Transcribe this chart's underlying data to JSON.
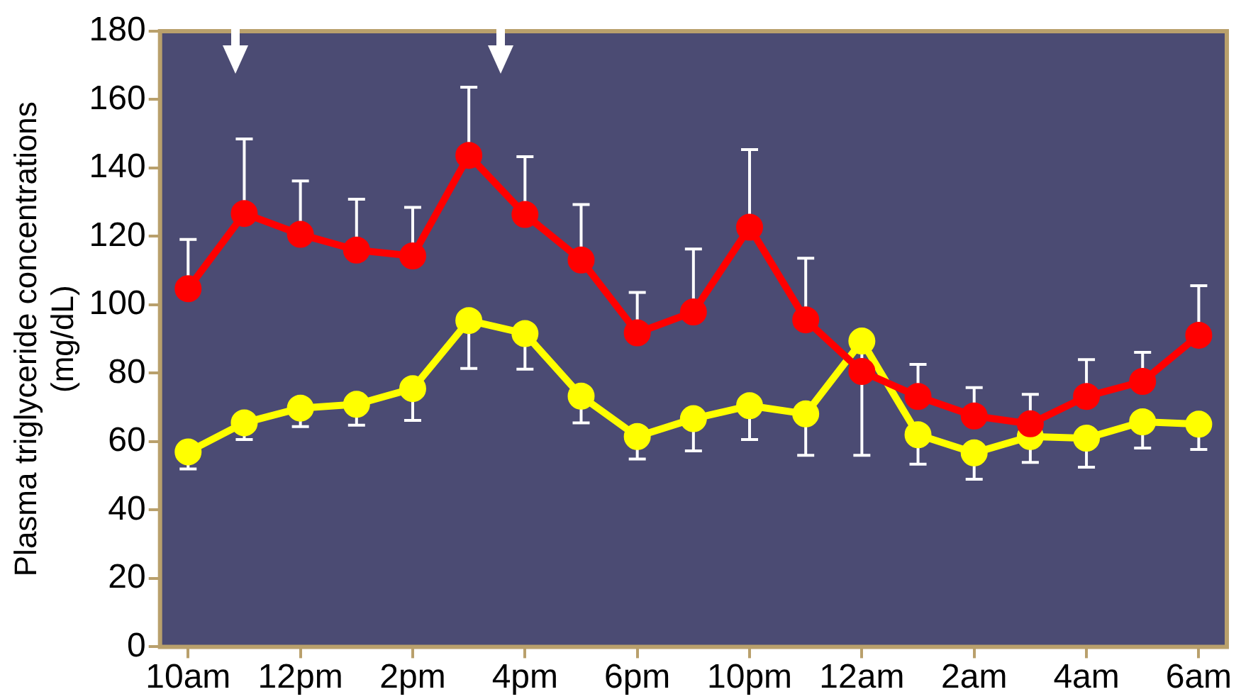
{
  "chart_data": {
    "type": "line",
    "ylabel": "Plasma triglyceride concentrations\n(mg/dL)",
    "categories": [
      "10am",
      null,
      "12pm",
      null,
      "2pm",
      null,
      "4pm",
      null,
      "6pm",
      null,
      "10pm",
      null,
      "12am",
      null,
      "2am",
      null,
      "4am",
      null,
      "6am"
    ],
    "series": [
      {
        "color": "#ff0000",
        "values": [
          104.7,
          126.7,
          120.6,
          116,
          114.3,
          143.7,
          126.4,
          113.1,
          91.8,
          97.9,
          122.7,
          95.6,
          80.5,
          73.2,
          67.5,
          65.2,
          73.2,
          77.6,
          91.1
        ],
        "errors": [
          [
            104.7,
            119.1
          ],
          [
            126.7,
            148.5
          ],
          [
            120.6,
            136.2
          ],
          [
            116,
            130.9
          ],
          [
            114.3,
            128.5
          ],
          [
            143.7,
            163.6
          ],
          [
            126.4,
            143.3
          ],
          [
            113.1,
            129.3
          ],
          [
            91.8,
            103.6
          ],
          [
            97.9,
            116.3
          ],
          [
            122.7,
            145.4
          ],
          [
            95.6,
            113.6
          ],
          null,
          [
            73.2,
            82.6
          ],
          [
            67.5,
            75.8
          ],
          [
            65.2,
            73.8
          ],
          [
            73.2,
            84
          ],
          [
            77.6,
            86.1
          ],
          [
            91.1,
            105.6
          ]
        ]
      },
      {
        "color": "#ffff00",
        "values": [
          57,
          65.5,
          69.8,
          70.9,
          75.5,
          95.4,
          91.6,
          73.3,
          61.5,
          66.7,
          70.5,
          68.1,
          89.4,
          62,
          56.7,
          61.5,
          61,
          65.8,
          65.1
        ],
        "errors": [
          [
            52,
            57
          ],
          [
            60.6,
            65.5
          ],
          [
            64.4,
            69.8
          ],
          [
            64.8,
            70.9
          ],
          [
            66.2,
            75.5
          ],
          [
            81.4,
            95.4
          ],
          [
            81.2,
            91.6
          ],
          [
            65.5,
            73.3
          ],
          [
            54.9,
            61.5
          ],
          [
            57.3,
            66.7
          ],
          [
            60.6,
            70.5
          ],
          [
            56,
            68.1
          ],
          [
            56,
            89.4
          ],
          [
            53.4,
            62
          ],
          [
            49,
            56.7
          ],
          [
            53.9,
            61.5
          ],
          [
            52.5,
            61
          ],
          [
            58.1,
            65.8
          ],
          [
            57.7,
            65.1
          ]
        ]
      }
    ],
    "ylim": [
      0,
      180
    ],
    "yticks": [
      0,
      20,
      40,
      60,
      80,
      100,
      120,
      140,
      160,
      180
    ],
    "grid": false,
    "legend": false,
    "marker": "circle",
    "line_style": "solid"
  }
}
